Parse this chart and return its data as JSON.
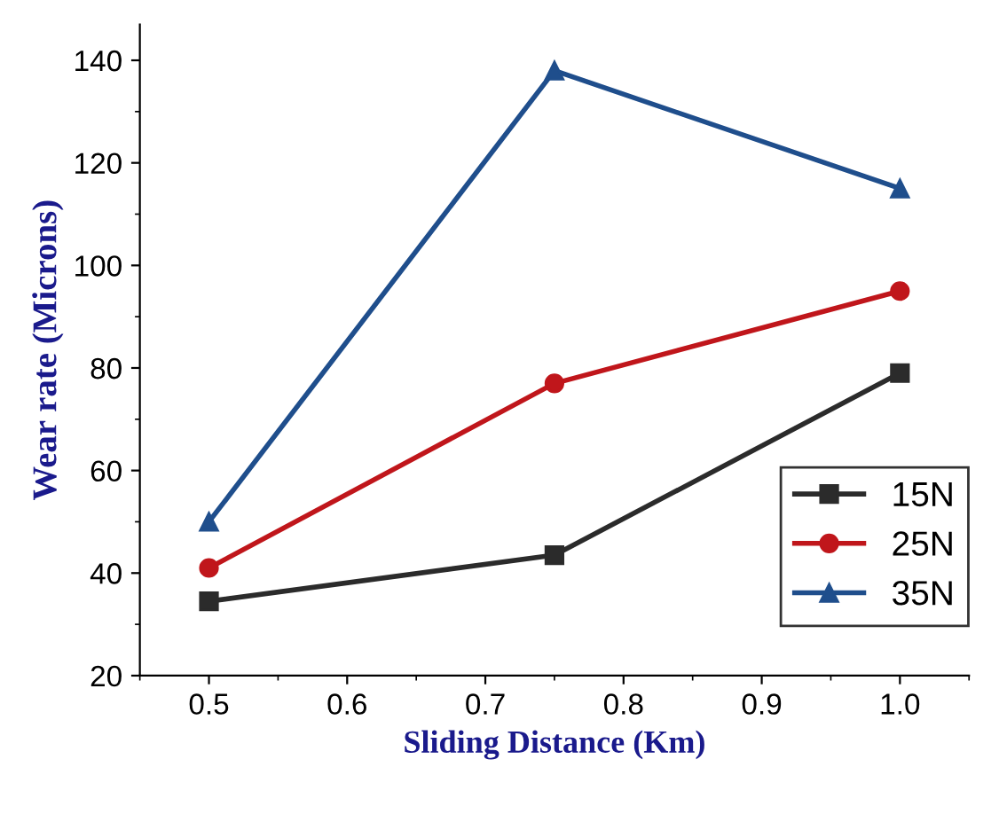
{
  "chart_data": {
    "type": "line",
    "xlabel": "Sliding Distance (Km)",
    "ylabel": "Wear rate (Microns)",
    "x": [
      0.5,
      0.75,
      1.0
    ],
    "series": [
      {
        "name": "15N",
        "color": "#2b2b2b",
        "values": [
          34.5,
          43.5,
          79
        ],
        "marker": "square"
      },
      {
        "name": "25N",
        "color": "#c0161b",
        "values": [
          41,
          77,
          95
        ],
        "marker": "circle"
      },
      {
        "name": "35N",
        "color": "#1f4e8c",
        "values": [
          50,
          138,
          115
        ],
        "marker": "triangle"
      }
    ],
    "xlim": [
      0.45,
      1.05
    ],
    "xticks": [
      {
        "value": 0.5,
        "label": "0.5"
      },
      {
        "value": 0.6,
        "label": "0.6"
      },
      {
        "value": 0.7,
        "label": "0.7"
      },
      {
        "value": 0.8,
        "label": "0.8"
      },
      {
        "value": 0.9,
        "label": "0.9"
      },
      {
        "value": 1.0,
        "label": "1.0"
      }
    ],
    "ylim": [
      20,
      147
    ],
    "yticks": [
      20,
      40,
      60,
      80,
      100,
      120,
      140
    ],
    "grid": false,
    "legend": "bottom right",
    "line_style": "solid"
  }
}
